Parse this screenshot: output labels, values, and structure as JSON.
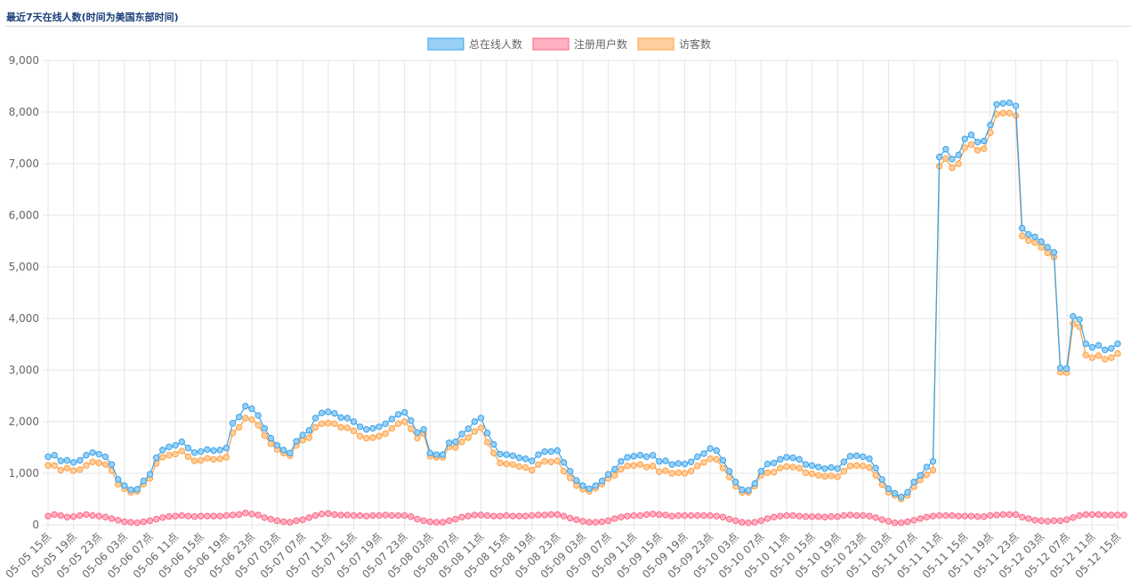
{
  "panel": {
    "title": "最近7天在线人数(时间为美国东部时间)"
  },
  "colors": {
    "total": "#36a2eb",
    "total_fill": "#9ad0f5",
    "registered": "#ff6384",
    "registered_fill": "#ffb1c1",
    "visitor": "#ff9f40",
    "visitor_fill": "#ffcf9f",
    "grid": "#e5e5e5"
  },
  "chart_data": {
    "type": "line",
    "title": "",
    "xlabel": "",
    "ylabel": "",
    "ylim": [
      0,
      9000
    ],
    "y_ticks": [
      "0",
      "1,000",
      "2,000",
      "3,000",
      "4,000",
      "5,000",
      "6,000",
      "7,000",
      "8,000",
      "9,000"
    ],
    "grid": true,
    "legend_position": "top",
    "x_tick_labels": [
      "05-05 15点",
      "05-05 19点",
      "05-05 23点",
      "05-06 03点",
      "05-06 07点",
      "05-06 11点",
      "05-06 15点",
      "05-06 19点",
      "05-06 23点",
      "05-07 03点",
      "05-07 07点",
      "05-07 11点",
      "05-07 15点",
      "05-07 19点",
      "05-07 23点",
      "05-08 03点",
      "05-08 07点",
      "05-08 11点",
      "05-08 15点",
      "05-08 19点",
      "05-08 23点",
      "05-09 03点",
      "05-09 07点",
      "05-09 11点",
      "05-09 15点",
      "05-09 19点",
      "05-09 23点",
      "05-10 03点",
      "05-10 07点",
      "05-10 11点",
      "05-10 15点",
      "05-10 19点",
      "05-10 23点",
      "05-11 03点",
      "05-11 07点",
      "05-11 11点",
      "05-11 15点",
      "05-11 19点",
      "05-11 23点",
      "05-12 03点",
      "05-12 07点",
      "05-12 11点",
      "05-12 15点"
    ],
    "series": [
      {
        "name": "总在线人数",
        "values": [
          1320,
          1350,
          1240,
          1250,
          1210,
          1250,
          1350,
          1400,
          1370,
          1320,
          1170,
          880,
          760,
          680,
          690,
          850,
          980,
          1300,
          1450,
          1510,
          1540,
          1610,
          1490,
          1400,
          1420,
          1460,
          1440,
          1450,
          1490,
          1970,
          2090,
          2300,
          2250,
          2120,
          1870,
          1680,
          1540,
          1450,
          1390,
          1620,
          1740,
          1830,
          2070,
          2170,
          2190,
          2160,
          2080,
          2070,
          2000,
          1900,
          1850,
          1870,
          1900,
          1960,
          2050,
          2140,
          2180,
          2020,
          1790,
          1850,
          1390,
          1360,
          1360,
          1590,
          1610,
          1760,
          1860,
          2000,
          2070,
          1780,
          1560,
          1370,
          1360,
          1340,
          1300,
          1280,
          1240,
          1360,
          1420,
          1420,
          1440,
          1210,
          1040,
          860,
          760,
          700,
          760,
          850,
          980,
          1080,
          1230,
          1310,
          1330,
          1350,
          1320,
          1350,
          1230,
          1240,
          1170,
          1190,
          1180,
          1220,
          1320,
          1380,
          1480,
          1440,
          1250,
          1040,
          830,
          680,
          670,
          800,
          1040,
          1180,
          1200,
          1270,
          1310,
          1300,
          1270,
          1170,
          1150,
          1120,
          1090,
          1110,
          1090,
          1220,
          1330,
          1340,
          1320,
          1280,
          1100,
          880,
          700,
          610,
          540,
          630,
          830,
          960,
          1120,
          1230,
          7130,
          7280,
          7090,
          7170,
          7480,
          7560,
          7420,
          7440,
          7750,
          8150,
          8170,
          8180,
          8120,
          5750,
          5630,
          5580,
          5490,
          5380,
          5280,
          3040,
          3030,
          4040,
          3980,
          3510,
          3440,
          3480,
          3390,
          3420,
          3510
        ]
      },
      {
        "name": "注册用户数",
        "values": [
          170,
          200,
          180,
          150,
          160,
          180,
          200,
          180,
          170,
          150,
          120,
          90,
          60,
          50,
          40,
          60,
          80,
          110,
          140,
          160,
          170,
          180,
          170,
          160,
          170,
          170,
          170,
          170,
          180,
          190,
          200,
          230,
          210,
          190,
          140,
          110,
          80,
          60,
          50,
          80,
          100,
          140,
          180,
          210,
          220,
          200,
          190,
          190,
          180,
          180,
          170,
          180,
          180,
          190,
          180,
          180,
          180,
          160,
          110,
          80,
          60,
          50,
          50,
          80,
          110,
          150,
          170,
          190,
          190,
          180,
          170,
          170,
          180,
          170,
          170,
          170,
          180,
          190,
          190,
          200,
          200,
          170,
          130,
          100,
          70,
          50,
          50,
          60,
          80,
          120,
          150,
          170,
          180,
          180,
          200,
          210,
          200,
          190,
          170,
          180,
          180,
          180,
          180,
          180,
          180,
          170,
          150,
          110,
          80,
          50,
          40,
          50,
          80,
          120,
          150,
          170,
          180,
          180,
          170,
          160,
          160,
          160,
          150,
          160,
          160,
          180,
          190,
          180,
          180,
          170,
          140,
          100,
          70,
          40,
          40,
          60,
          90,
          120,
          150,
          170,
          180,
          180,
          180,
          170,
          170,
          170,
          160,
          160,
          180,
          190,
          200,
          200,
          200,
          150,
          120,
          90,
          80,
          70,
          80,
          80,
          100,
          140,
          180,
          200,
          200,
          200,
          190,
          190,
          190,
          190
        ]
      },
      {
        "name": "访客数",
        "values": [
          1150,
          1150,
          1060,
          1100,
          1050,
          1070,
          1150,
          1220,
          1200,
          1170,
          1050,
          790,
          700,
          630,
          650,
          790,
          900,
          1190,
          1310,
          1350,
          1370,
          1430,
          1320,
          1240,
          1250,
          1290,
          1270,
          1280,
          1310,
          1780,
          1890,
          2070,
          2040,
          1930,
          1730,
          1570,
          1460,
          1390,
          1340,
          1540,
          1640,
          1690,
          1890,
          1960,
          1970,
          1960,
          1890,
          1880,
          1820,
          1720,
          1680,
          1690,
          1720,
          1770,
          1870,
          1960,
          2000,
          1860,
          1680,
          1770,
          1330,
          1310,
          1310,
          1510,
          1500,
          1610,
          1690,
          1810,
          1880,
          1600,
          1390,
          1200,
          1180,
          1170,
          1130,
          1110,
          1060,
          1170,
          1230,
          1220,
          1240,
          1040,
          910,
          760,
          690,
          650,
          710,
          790,
          900,
          960,
          1080,
          1140,
          1150,
          1170,
          1120,
          1140,
          1030,
          1050,
          1000,
          1010,
          1000,
          1040,
          1140,
          1210,
          1280,
          1270,
          1100,
          930,
          750,
          630,
          630,
          750,
          960,
          1010,
          1020,
          1100,
          1130,
          1120,
          1100,
          1010,
          990,
          960,
          940,
          950,
          930,
          1040,
          1140,
          1150,
          1140,
          1110,
          960,
          780,
          630,
          570,
          500,
          570,
          740,
          870,
          970,
          1060,
          6950,
          7100,
          6920,
          7000,
          7310,
          7370,
          7260,
          7290,
          7600,
          7960,
          7980,
          7980,
          7930,
          5600,
          5510,
          5470,
          5380,
          5270,
          5190,
          2960,
          2950,
          3900,
          3840,
          3290,
          3240,
          3280,
          3210,
          3240,
          3320
        ]
      }
    ]
  }
}
